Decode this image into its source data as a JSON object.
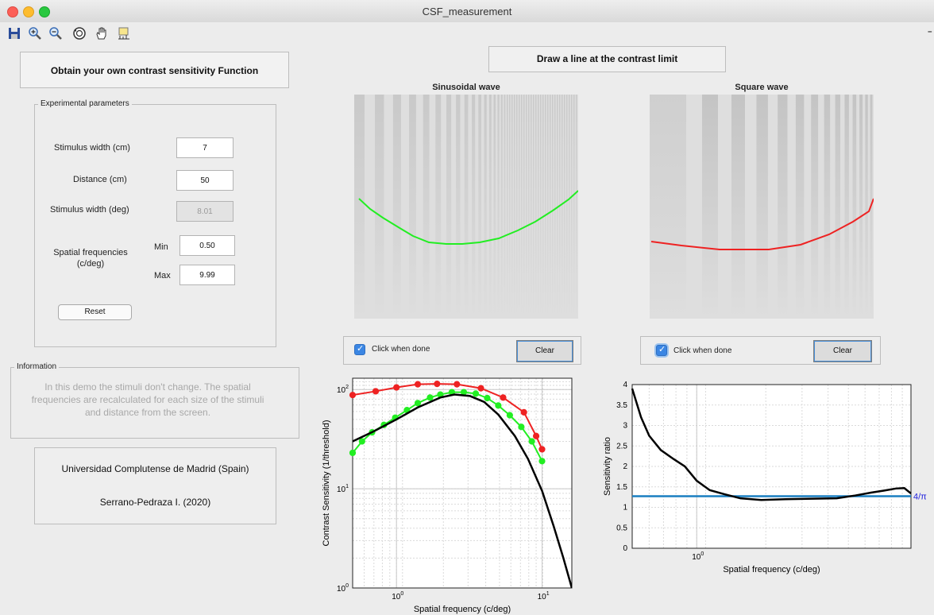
{
  "window": {
    "title": "CSF_measurement"
  },
  "toolbar": {
    "icons": [
      "save-icon",
      "zoom-in-icon",
      "zoom-out-icon",
      "rotate-3d-icon",
      "pan-hand-icon",
      "data-cursor-icon"
    ]
  },
  "left": {
    "heading": "Obtain your own contrast sensitivity Function",
    "params": {
      "legend": "Experimental parameters",
      "stim_width_cm_label": "Stimulus width (cm)",
      "stim_width_cm_value": "7",
      "distance_label": "Distance (cm)",
      "distance_value": "50",
      "stim_width_deg_label": "Stimulus width (deg)",
      "stim_width_deg_value": "8.01",
      "sf_label_1": "Spatial frequencies",
      "sf_label_2": "(c/deg)",
      "min_label": "Min",
      "min_value": "0.50",
      "max_label": "Max",
      "max_value": "9.99",
      "reset_label": "Reset"
    },
    "info": {
      "legend": "Information",
      "text": "In this demo the stimuli don't change. The spatial frequencies are recalculated for each size of the stimuli and distance from the screen."
    },
    "credits": {
      "line1": "Universidad Complutense de Madrid (Spain)",
      "line2": "Serrano-Pedraza I. (2020)"
    }
  },
  "main": {
    "instruction": "Draw a line at the contrast limit",
    "sin_title": "Sinusoidal wave",
    "sq_title": "Square wave",
    "sin_done_label": "Click when done",
    "sq_done_label": "Click when done",
    "sin_done_checked": true,
    "sq_done_checked": true,
    "clear_label": "Clear",
    "clear_label_2": "Clear"
  },
  "colors": {
    "green": "#22ee22",
    "red": "#ee2222",
    "black": "#000000",
    "ratio_line": "#1a7fc1",
    "four_pi_label": "#1f1fdd"
  },
  "chart_data": [
    {
      "type": "line",
      "xlabel": "Spatial frequency (c/deg)",
      "ylabel": "Contrast Sensitivity (1/threshold)",
      "xscale": "log",
      "yscale": "log",
      "xlim": [
        0.5,
        16
      ],
      "ylim": [
        1,
        130
      ],
      "xticks": [
        {
          "v": 1,
          "label": "10^0"
        },
        {
          "v": 10,
          "label": "10^1"
        }
      ],
      "yticks": [
        {
          "v": 1,
          "label": "10^0"
        },
        {
          "v": 10,
          "label": "10^1"
        },
        {
          "v": 100,
          "label": "10^2"
        }
      ],
      "grid": true,
      "series": [
        {
          "color": "red",
          "markers": true,
          "x": [
            0.5,
            0.72,
            1.0,
            1.4,
            1.9,
            2.6,
            3.8,
            5.4,
            7.5,
            9.1,
            9.99
          ],
          "y": [
            88,
            96,
            105,
            113,
            114,
            113,
            103,
            83,
            59,
            34,
            25
          ]
        },
        {
          "color": "green",
          "markers": true,
          "x": [
            0.5,
            0.58,
            0.68,
            0.82,
            0.98,
            1.18,
            1.4,
            1.7,
            2.0,
            2.4,
            2.9,
            3.5,
            4.2,
            5.0,
            6.0,
            7.2,
            8.5,
            9.99
          ],
          "y": [
            23,
            30,
            37,
            44,
            52,
            62,
            73,
            83,
            89,
            94,
            94,
            91,
            82,
            69,
            55,
            42,
            30,
            19
          ]
        },
        {
          "color": "black",
          "markers": false,
          "x": [
            0.5,
            0.7,
            1.0,
            1.4,
            2.0,
            2.5,
            3.2,
            4.0,
            5.0,
            6.5,
            8.0,
            10,
            12,
            14,
            16
          ],
          "y": [
            30,
            38,
            50,
            66,
            83,
            89,
            86,
            75,
            56,
            34,
            20,
            9.5,
            4.2,
            2,
            1
          ]
        }
      ]
    },
    {
      "type": "line",
      "xlabel": "Spatial frequency (c/deg)",
      "ylabel": "Sensitivity ratio",
      "xscale": "log",
      "xlim": [
        0.5,
        9.99
      ],
      "ylim": [
        0,
        4
      ],
      "xticks": [
        {
          "v": 1,
          "label": "10^0"
        }
      ],
      "yticks": [
        0,
        0.5,
        1,
        1.5,
        2,
        2.5,
        3,
        3.5,
        4
      ],
      "grid": true,
      "reference_line": {
        "y": 1.273,
        "label": "4/π"
      },
      "series": [
        {
          "color": "black",
          "x": [
            0.5,
            0.55,
            0.6,
            0.68,
            0.78,
            0.88,
            1.0,
            1.15,
            1.35,
            1.6,
            2.0,
            2.6,
            3.5,
            4.5,
            5.5,
            6.5,
            7.5,
            8.5,
            9.3,
            9.99
          ],
          "y": [
            3.9,
            3.2,
            2.75,
            2.4,
            2.18,
            2.0,
            1.65,
            1.42,
            1.32,
            1.22,
            1.18,
            1.2,
            1.21,
            1.22,
            1.29,
            1.36,
            1.41,
            1.46,
            1.47,
            1.34
          ]
        }
      ]
    }
  ]
}
